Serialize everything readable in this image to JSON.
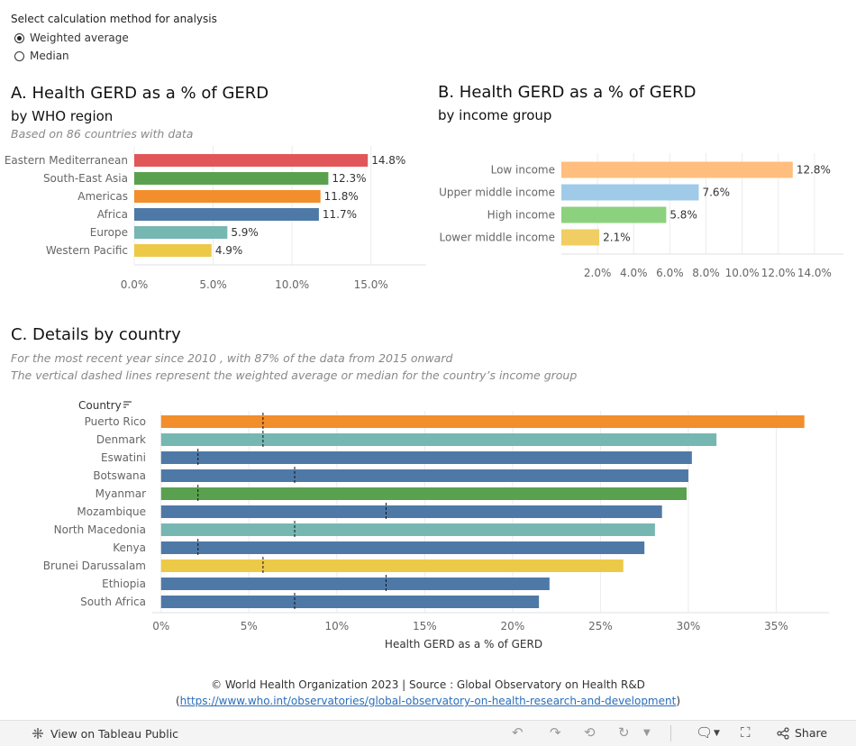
{
  "controls": {
    "title": "Select calculation method for analysis",
    "options": [
      {
        "label": "Weighted average",
        "selected": true
      },
      {
        "label": "Median",
        "selected": false
      }
    ]
  },
  "chart_a": {
    "title": "A. Health GERD as a % of GERD",
    "subtitle": "by WHO region",
    "note": "Based on  86 countries with data"
  },
  "chart_b": {
    "title": "B. Health GERD as a % of GERD",
    "subtitle": "by income group"
  },
  "chart_c": {
    "title": "C. Details by country",
    "note1": "For the most recent year since 2010 , with 87% of the data from 2015 onward",
    "note2": "The vertical dashed lines represent the weighted average or median for the country’s income group",
    "header": "Country",
    "sort_icon": "sort-icon"
  },
  "chart_data": [
    {
      "type": "bar",
      "orientation": "horizontal",
      "title": "A. Health GERD as a % of GERD",
      "categories": [
        "Eastern Mediterranean",
        "South-East Asia",
        "Americas",
        "Africa",
        "Europe",
        "Western Pacific"
      ],
      "values": [
        14.8,
        12.3,
        11.8,
        11.7,
        5.9,
        4.9
      ],
      "labels": [
        "14.8%",
        "12.3%",
        "11.8%",
        "11.7%",
        "5.9%",
        "4.9%"
      ],
      "colors": [
        "#e15759",
        "#59a14f",
        "#f28e2b",
        "#4e79a7",
        "#76b7b2",
        "#edc948"
      ],
      "xlim": [
        0,
        18.5
      ],
      "ticks": [
        0,
        5,
        10,
        15
      ],
      "tick_labels": [
        "0.0%",
        "5.0%",
        "10.0%",
        "15.0%"
      ],
      "grid": true
    },
    {
      "type": "bar",
      "orientation": "horizontal",
      "title": "B. Health GERD as a % of GERD",
      "categories": [
        "Low income",
        "Upper middle income",
        "High income",
        "Lower middle income"
      ],
      "values": [
        12.8,
        7.6,
        5.8,
        2.1
      ],
      "labels": [
        "12.8%",
        "7.6%",
        "5.8%",
        "2.1%"
      ],
      "colors": [
        "#ffbe7d",
        "#a0cbe8",
        "#8cd17d",
        "#f1ce63"
      ],
      "xlim": [
        0,
        15.6
      ],
      "ticks": [
        2,
        4,
        6,
        8,
        10,
        12,
        14
      ],
      "tick_labels": [
        "2.0%",
        "4.0%",
        "6.0%",
        "8.0%",
        "10.0%",
        "12.0%",
        "14.0%"
      ],
      "grid": true
    },
    {
      "type": "bar",
      "orientation": "horizontal",
      "title": "C. Details by country",
      "xlabel": "Health GERD as a % of GERD",
      "categories": [
        "Puerto Rico",
        "Denmark",
        "Eswatini",
        "Botswana",
        "Myanmar",
        "Mozambique",
        "North Macedonia",
        "Kenya",
        "Brunei Darussalam",
        "Ethiopia",
        "South Africa"
      ],
      "values": [
        36.6,
        31.6,
        30.2,
        30.0,
        29.9,
        28.5,
        28.1,
        27.5,
        26.3,
        22.1,
        21.5
      ],
      "reference_values": [
        5.8,
        5.8,
        2.1,
        7.6,
        2.1,
        12.8,
        7.6,
        2.1,
        5.8,
        12.8,
        7.6
      ],
      "colors": [
        "#f28e2b",
        "#76b7b2",
        "#4e79a7",
        "#4e79a7",
        "#59a14f",
        "#4e79a7",
        "#76b7b2",
        "#4e79a7",
        "#edc948",
        "#4e79a7",
        "#4e79a7"
      ],
      "xlim": [
        -0.5,
        38.0
      ],
      "ticks": [
        0,
        5,
        10,
        15,
        20,
        25,
        30,
        35
      ],
      "tick_labels": [
        "0%",
        "5%",
        "10%",
        "15%",
        "20%",
        "25%",
        "30%",
        "35%"
      ],
      "grid": true
    }
  ],
  "footer": {
    "copyright": "© World Health Organization 2023 | Source : Global Observatory on Health R&D",
    "paren_open": "(",
    "link": "https://www.who.int/observatories/global-observatory-on-health-research-and-development",
    "paren_close": ")"
  },
  "toolbar": {
    "view_label": "View on Tableau Public",
    "share_label": "Share",
    "icons": [
      "tableau-icon",
      "undo-icon",
      "redo-icon",
      "revert-icon",
      "refresh-icon",
      "comment-icon",
      "fullscreen-icon",
      "share-icon"
    ]
  }
}
